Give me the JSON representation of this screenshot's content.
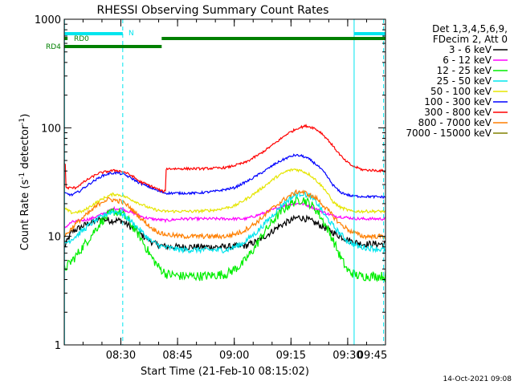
{
  "chart_data": {
    "type": "line",
    "title": "RHESSI Observing Summary Count Rates",
    "xlabel": "Start Time (21-Feb-10 08:15:02)",
    "ylabel_main": "Count Rate (s",
    "ylabel_sup1": "-1",
    "ylabel_mid": " detector",
    "ylabel_sup2": "-1",
    "ylabel_end": ")",
    "y_scale": "log",
    "ylim": [
      1,
      1000
    ],
    "xlim_minutes": [
      15.03,
      100
    ],
    "x_ticks": [
      {
        "minute": 30,
        "label": "08:30"
      },
      {
        "minute": 45,
        "label": "08:45"
      },
      {
        "minute": 60,
        "label": "09:00"
      },
      {
        "minute": 75,
        "label": "09:15"
      },
      {
        "minute": 90,
        "label": "09:30"
      },
      {
        "minute": 105,
        "label": "09:45"
      }
    ],
    "y_ticks": [
      {
        "value": 1,
        "label": "1"
      },
      {
        "value": 10,
        "label": "10"
      },
      {
        "value": 100,
        "label": "100"
      },
      {
        "value": 1000,
        "label": "1000"
      }
    ],
    "legend_header": [
      "Det 1,3,4,5,6,9,",
      "FDecim 2, Att 0"
    ],
    "legend_placement": "right",
    "series": [
      {
        "name": "3 - 6 keV",
        "color": "#000000",
        "noise": 0.07,
        "points": [
          [
            15.1,
            8
          ],
          [
            17,
            11
          ],
          [
            21,
            13
          ],
          [
            25,
            14.5
          ],
          [
            27,
            14
          ],
          [
            30,
            14
          ],
          [
            33,
            12
          ],
          [
            36,
            10
          ],
          [
            39,
            8.5
          ],
          [
            42,
            8
          ],
          [
            46,
            8
          ],
          [
            52,
            8
          ],
          [
            58,
            8
          ],
          [
            63,
            8.2
          ],
          [
            66,
            9
          ],
          [
            69,
            10.5
          ],
          [
            72,
            12.5
          ],
          [
            75,
            14
          ],
          [
            77,
            15
          ],
          [
            79,
            14.5
          ],
          [
            82,
            13
          ],
          [
            85,
            11.5
          ],
          [
            88,
            10
          ],
          [
            91,
            9
          ],
          [
            94,
            8.5
          ],
          [
            100,
            8.5
          ]
        ]
      },
      {
        "name": "6 - 12 keV",
        "color": "#ff00ff",
        "noise": 0.03,
        "points": [
          [
            15.1,
            12
          ],
          [
            17,
            13.5
          ],
          [
            22,
            14.5
          ],
          [
            26,
            16.5
          ],
          [
            28,
            18
          ],
          [
            30,
            18
          ],
          [
            32,
            17
          ],
          [
            34,
            16
          ],
          [
            36,
            15
          ],
          [
            38,
            14.5
          ],
          [
            42,
            14
          ],
          [
            46,
            14.5
          ],
          [
            52,
            14.5
          ],
          [
            58,
            14.5
          ],
          [
            63,
            14.5
          ],
          [
            67,
            16
          ],
          [
            71,
            18
          ],
          [
            74,
            19.5
          ],
          [
            76,
            20
          ],
          [
            78,
            20
          ],
          [
            80,
            19
          ],
          [
            83,
            17
          ],
          [
            86,
            15.5
          ],
          [
            89,
            15
          ],
          [
            93,
            14.5
          ],
          [
            100,
            14.5
          ]
        ]
      },
      {
        "name": "12 - 25 keV",
        "color": "#00ee00",
        "noise": 0.1,
        "points": [
          [
            15.1,
            5
          ],
          [
            18,
            6.5
          ],
          [
            22,
            10
          ],
          [
            25,
            14
          ],
          [
            28,
            17
          ],
          [
            30,
            16.5
          ],
          [
            32,
            14
          ],
          [
            35,
            10
          ],
          [
            38,
            6.5
          ],
          [
            40,
            5.2
          ],
          [
            42,
            4.5
          ],
          [
            46,
            4.3
          ],
          [
            52,
            4.3
          ],
          [
            58,
            4.5
          ],
          [
            62,
            5.5
          ],
          [
            65,
            7.5
          ],
          [
            68,
            11
          ],
          [
            71,
            15
          ],
          [
            74,
            19
          ],
          [
            76,
            21
          ],
          [
            78,
            22
          ],
          [
            80,
            20
          ],
          [
            82,
            17
          ],
          [
            84,
            13
          ],
          [
            86,
            9.5
          ],
          [
            88,
            6.5
          ],
          [
            90,
            4.8
          ],
          [
            93,
            4.3
          ],
          [
            100,
            4.3
          ]
        ]
      },
      {
        "name": "25 - 50 keV",
        "color": "#00e5ee",
        "noise": 0.06,
        "points": [
          [
            15.1,
            8.5
          ],
          [
            18,
            10
          ],
          [
            22,
            13
          ],
          [
            26,
            16
          ],
          [
            28,
            17
          ],
          [
            30,
            16.5
          ],
          [
            32,
            14.5
          ],
          [
            35,
            11.5
          ],
          [
            38,
            9
          ],
          [
            41,
            8
          ],
          [
            46,
            7.5
          ],
          [
            52,
            7.5
          ],
          [
            58,
            7.5
          ],
          [
            62,
            8.5
          ],
          [
            66,
            11
          ],
          [
            70,
            15.5
          ],
          [
            73,
            20
          ],
          [
            76,
            24
          ],
          [
            78,
            25
          ],
          [
            80,
            23.5
          ],
          [
            82,
            20
          ],
          [
            84,
            15.5
          ],
          [
            87,
            11.5
          ],
          [
            90,
            9
          ],
          [
            93,
            8
          ],
          [
            100,
            7.5
          ]
        ]
      },
      {
        "name": "50 - 100 keV",
        "color": "#e5e500",
        "noise": 0.03,
        "points": [
          [
            15.1,
            18
          ],
          [
            17,
            16.5
          ],
          [
            20,
            17
          ],
          [
            23,
            20
          ],
          [
            26,
            23
          ],
          [
            28,
            24.5
          ],
          [
            30,
            24
          ],
          [
            32,
            22.5
          ],
          [
            35,
            20
          ],
          [
            38,
            18
          ],
          [
            41,
            17
          ],
          [
            45,
            17
          ],
          [
            50,
            17
          ],
          [
            55,
            17.5
          ],
          [
            60,
            19
          ],
          [
            64,
            23
          ],
          [
            68,
            29
          ],
          [
            71,
            35
          ],
          [
            74,
            40
          ],
          [
            76,
            41.5
          ],
          [
            78,
            40
          ],
          [
            80,
            37
          ],
          [
            82,
            32
          ],
          [
            84,
            27
          ],
          [
            86,
            21
          ],
          [
            88,
            18.5
          ],
          [
            91,
            17
          ],
          [
            100,
            17
          ]
        ]
      },
      {
        "name": "100 - 300 keV",
        "color": "#0000ff",
        "noise": 0.025,
        "points": [
          [
            15.1,
            25
          ],
          [
            17,
            24
          ],
          [
            19,
            26
          ],
          [
            22,
            31
          ],
          [
            25,
            36
          ],
          [
            27,
            38
          ],
          [
            29,
            38.5
          ],
          [
            31,
            37
          ],
          [
            33,
            34
          ],
          [
            35,
            31
          ],
          [
            38,
            28
          ],
          [
            40,
            26
          ],
          [
            42,
            25
          ],
          [
            45,
            25
          ],
          [
            50,
            25
          ],
          [
            55,
            26
          ],
          [
            60,
            28
          ],
          [
            64,
            33
          ],
          [
            68,
            40
          ],
          [
            71,
            47
          ],
          [
            74,
            53
          ],
          [
            76,
            56
          ],
          [
            78,
            55
          ],
          [
            80,
            51
          ],
          [
            82,
            45
          ],
          [
            84,
            38
          ],
          [
            86,
            30
          ],
          [
            88,
            25.5
          ],
          [
            91,
            23.5
          ],
          [
            100,
            23
          ]
        ]
      },
      {
        "name": "300 - 800 keV",
        "color": "#ff0000",
        "noise": 0.025,
        "points": [
          [
            15.1,
            47
          ],
          [
            15.35,
            46
          ],
          [
            15.4,
            28
          ],
          [
            18,
            28
          ],
          [
            21,
            33
          ],
          [
            24,
            38
          ],
          [
            27,
            40
          ],
          [
            29,
            40.5
          ],
          [
            31,
            39
          ],
          [
            33,
            36
          ],
          [
            35,
            32
          ],
          [
            38,
            29
          ],
          [
            41,
            26
          ],
          [
            41.8,
            26
          ],
          [
            41.9,
            42
          ],
          [
            46,
            42
          ],
          [
            52,
            42
          ],
          [
            58,
            43
          ],
          [
            63,
            48
          ],
          [
            67,
            58
          ],
          [
            71,
            73
          ],
          [
            74,
            88
          ],
          [
            77,
            100
          ],
          [
            79,
            104
          ],
          [
            81,
            100
          ],
          [
            83,
            90
          ],
          [
            85,
            76
          ],
          [
            87,
            62
          ],
          [
            89,
            51
          ],
          [
            91,
            45
          ],
          [
            94,
            41
          ],
          [
            100,
            40
          ]
        ]
      },
      {
        "name": "800 - 7000 keV",
        "color": "#ff7f00",
        "noise": 0.05,
        "points": [
          [
            15.1,
            10
          ],
          [
            18,
            13
          ],
          [
            22,
            17
          ],
          [
            25,
            21
          ],
          [
            27,
            22
          ],
          [
            30,
            21
          ],
          [
            32,
            19
          ],
          [
            35,
            15
          ],
          [
            38,
            12
          ],
          [
            41,
            10.5
          ],
          [
            46,
            10
          ],
          [
            52,
            10
          ],
          [
            58,
            10
          ],
          [
            62,
            11
          ],
          [
            66,
            13.5
          ],
          [
            70,
            18
          ],
          [
            74,
            23
          ],
          [
            77,
            26
          ],
          [
            79,
            25
          ],
          [
            82,
            22
          ],
          [
            85,
            17
          ],
          [
            88,
            13
          ],
          [
            91,
            11
          ],
          [
            94,
            10
          ],
          [
            100,
            10
          ]
        ]
      },
      {
        "name": "7000 - 15000 keV",
        "color": "#808000",
        "noise": 0.0,
        "points": []
      }
    ],
    "flags": [
      {
        "label": "N",
        "color": "#00e5ee",
        "segments": [
          [
            15.03,
            30.5
          ],
          [
            91.7,
            100
          ]
        ]
      },
      {
        "label": "RD0",
        "color": "#008000",
        "segments": [
          [
            15.03,
            15.9
          ],
          [
            40.8,
            100
          ]
        ]
      },
      {
        "label": "RD4",
        "color": "#008000",
        "segments": [
          [
            15.03,
            40.8
          ]
        ]
      }
    ],
    "vlines": [
      {
        "minute": 15.1,
        "color": "#00e5ee",
        "style": "solid"
      },
      {
        "minute": 30.5,
        "color": "#00e5ee",
        "style": "dashed"
      },
      {
        "minute": 91.7,
        "color": "#00e5ee",
        "style": "solid"
      },
      {
        "minute": 99.5,
        "color": "#00e5ee",
        "style": "dashed"
      }
    ],
    "footer_date": "14-Oct-2021 09:08"
  }
}
